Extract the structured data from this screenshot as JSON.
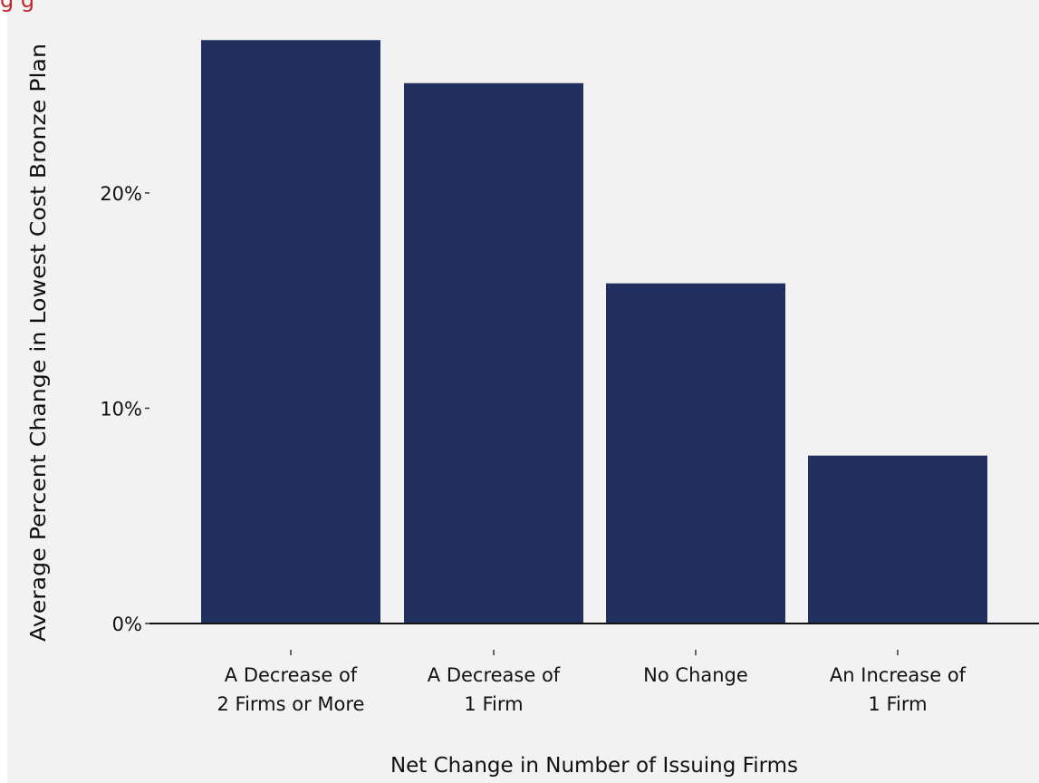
{
  "header": {
    "title_fragment": "g                                    g"
  },
  "colors": {
    "bar": "#22305f",
    "background": "#f2f2f2",
    "title": "#c0262c"
  },
  "chart_data": {
    "type": "bar",
    "title": "",
    "xlabel": "Net Change in Number of Issuing Firms",
    "ylabel": "Average Percent Change in Lowest Cost Bronze Plan",
    "categories": [
      [
        "A Decrease of",
        "2 Firms or More"
      ],
      [
        "A Decrease of",
        "1 Firm"
      ],
      [
        "No Change"
      ],
      [
        "An Increase of",
        "1 Firm"
      ]
    ],
    "values": [
      27.1,
      25.1,
      15.8,
      7.8
    ],
    "ylim": [
      0,
      27.7
    ],
    "y_ticks": [
      {
        "value": 0,
        "label": "0%"
      },
      {
        "value": 10,
        "label": "10%"
      },
      {
        "value": 20,
        "label": "20%"
      }
    ],
    "grid": false,
    "legend": "none"
  }
}
